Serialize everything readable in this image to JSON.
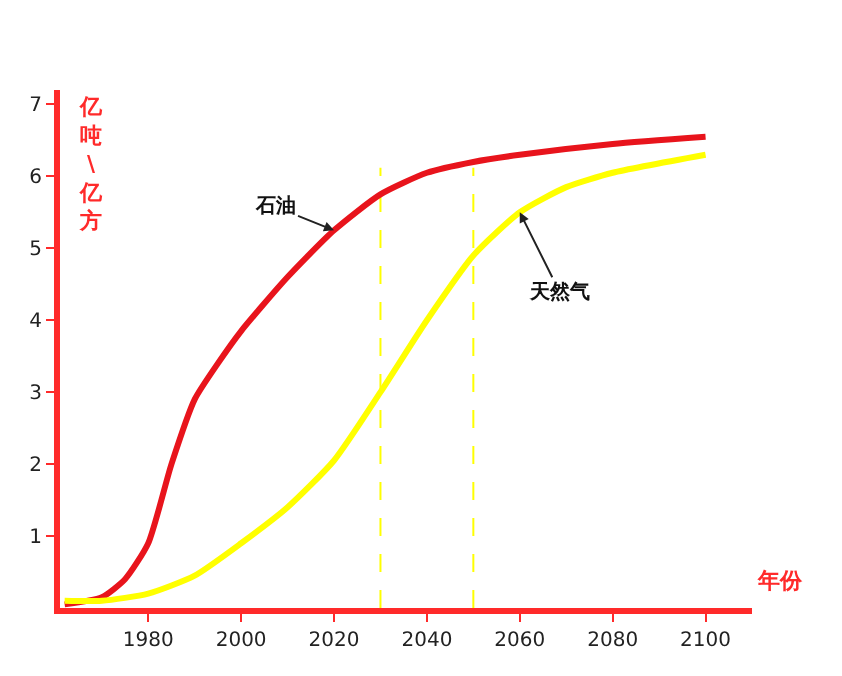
{
  "chart_data": {
    "type": "line",
    "xlabel": "年份",
    "ylabel": "亿吨\\亿方",
    "xlim": [
      1961,
      2110
    ],
    "ylim": [
      0,
      7.2
    ],
    "xticks": [
      1980,
      2000,
      2020,
      2040,
      2060,
      2080,
      2100
    ],
    "yticks": [
      1,
      2,
      3,
      4,
      5,
      6,
      7
    ],
    "grid": false,
    "legend": false,
    "marker": "none",
    "line_style": "solid",
    "series": [
      {
        "name": "石油",
        "color": "#e8141c",
        "x": [
          1962,
          1970,
          1975,
          1980,
          1985,
          1990,
          1995,
          2000,
          2010,
          2020,
          2030,
          2040,
          2050,
          2060,
          2080,
          2100
        ],
        "values": [
          0.05,
          0.15,
          0.4,
          0.9,
          2.0,
          2.9,
          3.4,
          3.85,
          4.6,
          5.25,
          5.75,
          6.05,
          6.2,
          6.3,
          6.45,
          6.55
        ]
      },
      {
        "name": "天然气",
        "color": "#ffff00",
        "x": [
          1962,
          1970,
          1980,
          1990,
          2000,
          2010,
          2020,
          2030,
          2040,
          2050,
          2060,
          2070,
          2080,
          2100
        ],
        "values": [
          0.1,
          0.1,
          0.2,
          0.45,
          0.9,
          1.4,
          2.05,
          3.0,
          4.0,
          4.9,
          5.5,
          5.85,
          6.05,
          6.3
        ]
      }
    ],
    "ref_lines": [
      {
        "axis": "x",
        "value": 2030,
        "color": "#ffff00",
        "line_style": "dashed"
      },
      {
        "axis": "x",
        "value": 2050,
        "color": "#ffff00",
        "line_style": "dashed"
      }
    ]
  }
}
